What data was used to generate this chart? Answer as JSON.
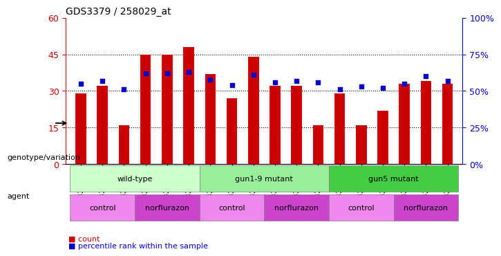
{
  "title": "GDS3379 / 258029_at",
  "samples": [
    "GSM323075",
    "GSM323076",
    "GSM323077",
    "GSM323078",
    "GSM323079",
    "GSM323080",
    "GSM323081",
    "GSM323082",
    "GSM323083",
    "GSM323084",
    "GSM323085",
    "GSM323086",
    "GSM323087",
    "GSM323088",
    "GSM323089",
    "GSM323090",
    "GSM323091",
    "GSM323092"
  ],
  "counts": [
    29,
    32,
    16,
    45,
    45,
    48,
    37,
    27,
    44,
    32,
    32,
    16,
    29,
    16,
    22,
    33,
    34,
    33
  ],
  "percentiles": [
    55,
    57,
    51,
    62,
    62,
    63,
    58,
    54,
    61,
    56,
    57,
    56,
    51,
    53,
    52,
    55,
    60,
    57
  ],
  "bar_color": "#cc0000",
  "dot_color": "#0000cc",
  "ylim_left": [
    0,
    60
  ],
  "ylim_right": [
    0,
    100
  ],
  "yticks_left": [
    0,
    15,
    30,
    45,
    60
  ],
  "yticks_right": [
    0,
    25,
    50,
    75,
    100
  ],
  "ytick_labels_left": [
    "0",
    "15",
    "30",
    "45",
    "60"
  ],
  "ytick_labels_right": [
    "0%",
    "25%",
    "50%",
    "75%",
    "100%"
  ],
  "grid_values": [
    15,
    30,
    45
  ],
  "genotype_groups": [
    {
      "label": "wild-type",
      "start": 0,
      "end": 6,
      "color": "#ccffcc"
    },
    {
      "label": "gun1-9 mutant",
      "start": 6,
      "end": 12,
      "color": "#99ee99"
    },
    {
      "label": "gun5 mutant",
      "start": 12,
      "end": 18,
      "color": "#44cc44"
    }
  ],
  "agent_groups": [
    {
      "label": "control",
      "start": 0,
      "end": 3,
      "color": "#ee88ee"
    },
    {
      "label": "norflurazon",
      "start": 3,
      "end": 6,
      "color": "#cc44cc"
    },
    {
      "label": "control",
      "start": 6,
      "end": 9,
      "color": "#ee88ee"
    },
    {
      "label": "norflurazon",
      "start": 9,
      "end": 12,
      "color": "#cc44cc"
    },
    {
      "label": "control",
      "start": 12,
      "end": 15,
      "color": "#ee88ee"
    },
    {
      "label": "norflurazon",
      "start": 15,
      "end": 18,
      "color": "#cc44cc"
    }
  ],
  "legend_count_color": "#cc0000",
  "legend_pct_color": "#0000cc",
  "left_label_color": "#cc0000",
  "right_label_color": "#0000cc",
  "bar_width": 0.5
}
